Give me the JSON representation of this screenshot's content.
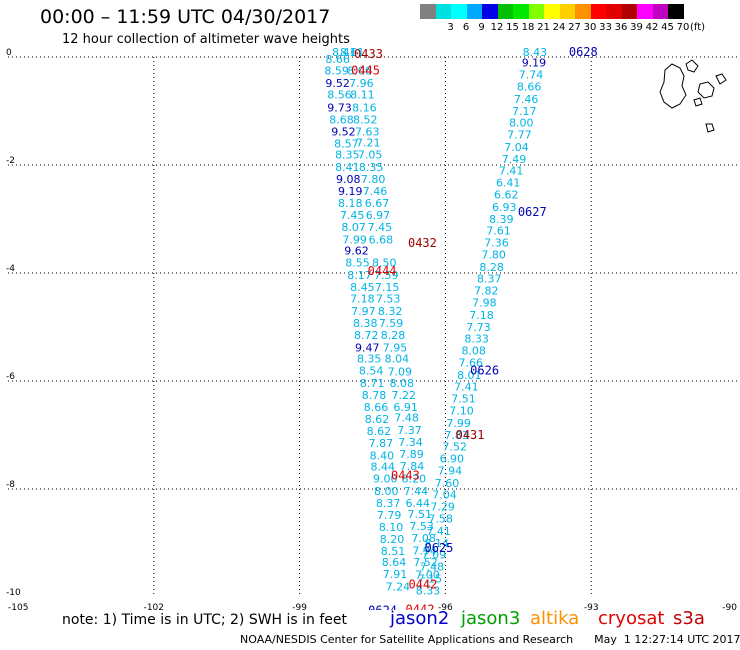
{
  "header": {
    "title": "00:00 – 11:59 UTC 04/30/2017",
    "subtitle": "12 hour collection of altimeter wave heights"
  },
  "color_scale": {
    "unit": "(ft)",
    "bins": [
      {
        "label": "",
        "color": "#808080"
      },
      {
        "label": "3",
        "color": "#00e0e0"
      },
      {
        "label": "6",
        "color": "#00ffff"
      },
      {
        "label": "9",
        "color": "#00a8ff"
      },
      {
        "label": "12",
        "color": "#0000e6"
      },
      {
        "label": "15",
        "color": "#00c000"
      },
      {
        "label": "18",
        "color": "#00e800"
      },
      {
        "label": "21",
        "color": "#80ff00"
      },
      {
        "label": "24",
        "color": "#ffff00"
      },
      {
        "label": "27",
        "color": "#ffd000"
      },
      {
        "label": "30",
        "color": "#ff9000"
      },
      {
        "label": "33",
        "color": "#ff0000"
      },
      {
        "label": "36",
        "color": "#e00000"
      },
      {
        "label": "39",
        "color": "#b00000"
      },
      {
        "label": "42",
        "color": "#ff00ff"
      },
      {
        "label": "45",
        "color": "#c000c0"
      },
      {
        "label": "70",
        "color": "#000000"
      }
    ]
  },
  "map": {
    "lon_range": [
      -105,
      -90
    ],
    "lat_range": [
      -10,
      0
    ],
    "x_ticks": [
      "-105",
      "-102",
      "-99",
      "-96",
      "-93",
      "-90"
    ],
    "y_ticks": [
      "0",
      "-2",
      "-4",
      "-6",
      "-8",
      "-10"
    ],
    "colors": {
      "light": "#00b4e6",
      "dark": "#0000b4",
      "red": "#e00000",
      "maroon": "#a00000"
    },
    "time_labels": [
      {
        "text": "0433",
        "lon": -97.88,
        "lat": -0.02,
        "color": "maroon"
      },
      {
        "text": "0445",
        "lon": -97.94,
        "lat": -0.32,
        "color": "red"
      },
      {
        "text": "0628",
        "lon": -93.46,
        "lat": 0.02,
        "color": "dark"
      },
      {
        "text": "0627",
        "lon": -94.51,
        "lat": -2.94,
        "color": "dark"
      },
      {
        "text": "0432",
        "lon": -96.77,
        "lat": -3.52,
        "color": "maroon"
      },
      {
        "text": "0444",
        "lon": -97.6,
        "lat": -4.04,
        "color": "red"
      },
      {
        "text": "0626",
        "lon": -95.49,
        "lat": -5.88,
        "color": "dark"
      },
      {
        "text": "0431",
        "lon": -95.79,
        "lat": -7.07,
        "color": "maroon"
      },
      {
        "text": "0443",
        "lon": -97.12,
        "lat": -7.82,
        "color": "red"
      },
      {
        "text": "0625",
        "lon": -96.43,
        "lat": -9.17,
        "color": "dark"
      },
      {
        "text": "0442",
        "lon": -96.76,
        "lat": -9.84,
        "color": "red"
      },
      {
        "text": "0442",
        "lon": -96.82,
        "lat": -10.31,
        "color": "red"
      },
      {
        "text": "0624",
        "lon": -97.59,
        "lat": -10.32,
        "color": "dark"
      }
    ],
    "readings": [
      {
        "t": "8.41",
        "lon": -98.33,
        "lat": 0.02,
        "c": "light"
      },
      {
        "t": "8.66",
        "lon": -98.47,
        "lat": -0.11,
        "c": "light"
      },
      {
        "t": "8.59",
        "lon": -98.49,
        "lat": -0.32,
        "c": "light"
      },
      {
        "t": "9.52",
        "lon": -98.47,
        "lat": -0.56,
        "c": "dark"
      },
      {
        "t": "8.56",
        "lon": -98.43,
        "lat": -0.77,
        "c": "light"
      },
      {
        "t": "9.73",
        "lon": -98.43,
        "lat": -1.01,
        "c": "dark"
      },
      {
        "t": "8.68",
        "lon": -98.39,
        "lat": -1.23,
        "c": "light"
      },
      {
        "t": "9.52",
        "lon": -98.35,
        "lat": -1.45,
        "c": "dark"
      },
      {
        "t": "8.57",
        "lon": -98.29,
        "lat": -1.68,
        "c": "light"
      },
      {
        "t": "8.35",
        "lon": -98.27,
        "lat": -1.88,
        "c": "light"
      },
      {
        "t": "8.41",
        "lon": -98.27,
        "lat": -2.11,
        "c": "light"
      },
      {
        "t": "9.08",
        "lon": -98.25,
        "lat": -2.33,
        "c": "dark"
      },
      {
        "t": "9.19",
        "lon": -98.21,
        "lat": -2.56,
        "c": "dark"
      },
      {
        "t": "8.18",
        "lon": -98.21,
        "lat": -2.78,
        "c": "light"
      },
      {
        "t": "7.45",
        "lon": -98.17,
        "lat": -3.0,
        "c": "light"
      },
      {
        "t": "8.07",
        "lon": -98.14,
        "lat": -3.22,
        "c": "light"
      },
      {
        "t": "7.99",
        "lon": -98.12,
        "lat": -3.45,
        "c": "light"
      },
      {
        "t": "9.62",
        "lon": -98.08,
        "lat": -3.66,
        "c": "dark"
      },
      {
        "t": "8.55",
        "lon": -98.06,
        "lat": -3.88,
        "c": "light"
      },
      {
        "t": "8.17",
        "lon": -98.02,
        "lat": -4.11,
        "c": "light"
      },
      {
        "t": "8.45",
        "lon": -97.96,
        "lat": -4.33,
        "c": "light"
      },
      {
        "t": "7.18",
        "lon": -97.96,
        "lat": -4.55,
        "c": "light"
      },
      {
        "t": "7.97",
        "lon": -97.94,
        "lat": -4.78,
        "c": "light"
      },
      {
        "t": "8.38",
        "lon": -97.9,
        "lat": -5.0,
        "c": "light"
      },
      {
        "t": "8.72",
        "lon": -97.88,
        "lat": -5.22,
        "c": "light"
      },
      {
        "t": "9.47",
        "lon": -97.86,
        "lat": -5.45,
        "c": "dark"
      },
      {
        "t": "8.35",
        "lon": -97.82,
        "lat": -5.66,
        "c": "light"
      },
      {
        "t": "8.54",
        "lon": -97.78,
        "lat": -5.88,
        "c": "light"
      },
      {
        "t": "8.71",
        "lon": -97.76,
        "lat": -6.11,
        "c": "light"
      },
      {
        "t": "8.78",
        "lon": -97.72,
        "lat": -6.33,
        "c": "light"
      },
      {
        "t": "8.66",
        "lon": -97.68,
        "lat": -6.56,
        "c": "light"
      },
      {
        "t": "8.62",
        "lon": -97.66,
        "lat": -6.78,
        "c": "light"
      },
      {
        "t": "8.62",
        "lon": -97.62,
        "lat": -7.0,
        "c": "light"
      },
      {
        "t": "7.87",
        "lon": -97.58,
        "lat": -7.22,
        "c": "light"
      },
      {
        "t": "8.40",
        "lon": -97.56,
        "lat": -7.45,
        "c": "light"
      },
      {
        "t": "8.44",
        "lon": -97.54,
        "lat": -7.66,
        "c": "light"
      },
      {
        "t": "9.00",
        "lon": -97.49,
        "lat": -7.88,
        "c": "light"
      },
      {
        "t": "8.00",
        "lon": -97.47,
        "lat": -8.11,
        "c": "light"
      },
      {
        "t": "8.37",
        "lon": -97.43,
        "lat": -8.33,
        "c": "light"
      },
      {
        "t": "7.79",
        "lon": -97.41,
        "lat": -8.56,
        "c": "light"
      },
      {
        "t": "8.10",
        "lon": -97.37,
        "lat": -8.78,
        "c": "light"
      },
      {
        "t": "8.20",
        "lon": -97.35,
        "lat": -9.0,
        "c": "light"
      },
      {
        "t": "8.51",
        "lon": -97.33,
        "lat": -9.22,
        "c": "light"
      },
      {
        "t": "8.64",
        "lon": -97.31,
        "lat": -9.43,
        "c": "light"
      },
      {
        "t": "7.91",
        "lon": -97.29,
        "lat": -9.65,
        "c": "light"
      },
      {
        "t": "7.24",
        "lon": -97.23,
        "lat": -9.88,
        "c": "light"
      },
      {
        "t": "8.61",
        "lon": -98.17,
        "lat": 0.02,
        "c": "light"
      },
      {
        "t": "8.06",
        "lon": -98.02,
        "lat": -0.32,
        "c": "light"
      },
      {
        "t": "7.96",
        "lon": -97.98,
        "lat": -0.56,
        "c": "light"
      },
      {
        "t": "8.11",
        "lon": -97.96,
        "lat": -0.77,
        "c": "light"
      },
      {
        "t": "8.16",
        "lon": -97.92,
        "lat": -1.01,
        "c": "light"
      },
      {
        "t": "8.52",
        "lon": -97.9,
        "lat": -1.23,
        "c": "light"
      },
      {
        "t": "7.63",
        "lon": -97.86,
        "lat": -1.45,
        "c": "light"
      },
      {
        "t": "7.21",
        "lon": -97.84,
        "lat": -1.66,
        "c": "light"
      },
      {
        "t": "7.05",
        "lon": -97.8,
        "lat": -1.88,
        "c": "light"
      },
      {
        "t": "8.35",
        "lon": -97.78,
        "lat": -2.11,
        "c": "light"
      },
      {
        "t": "7.80",
        "lon": -97.74,
        "lat": -2.33,
        "c": "light"
      },
      {
        "t": "7.46",
        "lon": -97.7,
        "lat": -2.56,
        "c": "light"
      },
      {
        "t": "6.67",
        "lon": -97.66,
        "lat": -2.78,
        "c": "light"
      },
      {
        "t": "6.97",
        "lon": -97.64,
        "lat": -3.0,
        "c": "light"
      },
      {
        "t": "7.45",
        "lon": -97.6,
        "lat": -3.22,
        "c": "light"
      },
      {
        "t": "6.68",
        "lon": -97.58,
        "lat": -3.45,
        "c": "light"
      },
      {
        "t": "8.50",
        "lon": -97.51,
        "lat": -3.88,
        "c": "light"
      },
      {
        "t": "7.59",
        "lon": -97.47,
        "lat": -4.11,
        "c": "light"
      },
      {
        "t": "7.15",
        "lon": -97.45,
        "lat": -4.33,
        "c": "light"
      },
      {
        "t": "7.53",
        "lon": -97.43,
        "lat": -4.55,
        "c": "light"
      },
      {
        "t": "8.32",
        "lon": -97.39,
        "lat": -4.78,
        "c": "light"
      },
      {
        "t": "7.59",
        "lon": -97.37,
        "lat": -5.0,
        "c": "light"
      },
      {
        "t": "8.28",
        "lon": -97.33,
        "lat": -5.22,
        "c": "light"
      },
      {
        "t": "7.95",
        "lon": -97.29,
        "lat": -5.45,
        "c": "light"
      },
      {
        "t": "8.04",
        "lon": -97.25,
        "lat": -5.66,
        "c": "light"
      },
      {
        "t": "7.09",
        "lon": -97.19,
        "lat": -5.9,
        "c": "light"
      },
      {
        "t": "8.08",
        "lon": -97.15,
        "lat": -6.11,
        "c": "light"
      },
      {
        "t": "7.22",
        "lon": -97.11,
        "lat": -6.33,
        "c": "light"
      },
      {
        "t": "6.91",
        "lon": -97.07,
        "lat": -6.56,
        "c": "light"
      },
      {
        "t": "7.48",
        "lon": -97.05,
        "lat": -6.75,
        "c": "light"
      },
      {
        "t": "7.37",
        "lon": -96.99,
        "lat": -6.98,
        "c": "light"
      },
      {
        "t": "7.34",
        "lon": -96.97,
        "lat": -7.2,
        "c": "light"
      },
      {
        "t": "7.89",
        "lon": -96.95,
        "lat": -7.43,
        "c": "light"
      },
      {
        "t": "7.84",
        "lon": -96.94,
        "lat": -7.65,
        "c": "light"
      },
      {
        "t": "8.20",
        "lon": -96.9,
        "lat": -7.88,
        "c": "light"
      },
      {
        "t": "7.44",
        "lon": -96.86,
        "lat": -8.11,
        "c": "light"
      },
      {
        "t": "6.44",
        "lon": -96.82,
        "lat": -8.33,
        "c": "light"
      },
      {
        "t": "7.51",
        "lon": -96.78,
        "lat": -8.54,
        "c": "light"
      },
      {
        "t": "7.53",
        "lon": -96.74,
        "lat": -8.76,
        "c": "light"
      },
      {
        "t": "7.08",
        "lon": -96.7,
        "lat": -8.98,
        "c": "light"
      },
      {
        "t": "7.94",
        "lon": -96.68,
        "lat": -9.21,
        "c": "light"
      },
      {
        "t": "7.52",
        "lon": -96.66,
        "lat": -9.43,
        "c": "light"
      },
      {
        "t": "7.00",
        "lon": -96.62,
        "lat": -9.66,
        "c": "light"
      },
      {
        "t": "8.43",
        "lon": -94.41,
        "lat": 0.02,
        "c": "light"
      },
      {
        "t": "9.19",
        "lon": -94.43,
        "lat": -0.18,
        "c": "dark"
      },
      {
        "t": "7.74",
        "lon": -94.49,
        "lat": -0.4,
        "c": "light"
      },
      {
        "t": "8.66",
        "lon": -94.53,
        "lat": -0.62,
        "c": "light"
      },
      {
        "t": "7.46",
        "lon": -94.59,
        "lat": -0.85,
        "c": "light"
      },
      {
        "t": "7.17",
        "lon": -94.63,
        "lat": -1.07,
        "c": "light"
      },
      {
        "t": "8.00",
        "lon": -94.69,
        "lat": -1.29,
        "c": "light"
      },
      {
        "t": "7.77",
        "lon": -94.73,
        "lat": -1.51,
        "c": "light"
      },
      {
        "t": "7.04",
        "lon": -94.79,
        "lat": -1.74,
        "c": "light"
      },
      {
        "t": "7.49",
        "lon": -94.84,
        "lat": -1.96,
        "c": "light"
      },
      {
        "t": "7.41",
        "lon": -94.9,
        "lat": -2.18,
        "c": "light"
      },
      {
        "t": "6.41",
        "lon": -94.96,
        "lat": -2.4,
        "c": "light"
      },
      {
        "t": "6.62",
        "lon": -95.0,
        "lat": -2.62,
        "c": "light"
      },
      {
        "t": "6.93",
        "lon": -95.04,
        "lat": -2.85,
        "c": "light"
      },
      {
        "t": "8.39",
        "lon": -95.1,
        "lat": -3.07,
        "c": "light"
      },
      {
        "t": "7.61",
        "lon": -95.16,
        "lat": -3.29,
        "c": "light"
      },
      {
        "t": "7.36",
        "lon": -95.2,
        "lat": -3.51,
        "c": "light"
      },
      {
        "t": "7.80",
        "lon": -95.26,
        "lat": -3.73,
        "c": "light"
      },
      {
        "t": "8.28",
        "lon": -95.3,
        "lat": -3.96,
        "c": "light"
      },
      {
        "t": "8.37",
        "lon": -95.35,
        "lat": -4.18,
        "c": "light"
      },
      {
        "t": "7.82",
        "lon": -95.41,
        "lat": -4.4,
        "c": "light"
      },
      {
        "t": "7.98",
        "lon": -95.45,
        "lat": -4.62,
        "c": "light"
      },
      {
        "t": "7.18",
        "lon": -95.51,
        "lat": -4.85,
        "c": "light"
      },
      {
        "t": "7.73",
        "lon": -95.57,
        "lat": -5.07,
        "c": "light"
      },
      {
        "t": "8.33",
        "lon": -95.61,
        "lat": -5.29,
        "c": "light"
      },
      {
        "t": "8.08",
        "lon": -95.67,
        "lat": -5.51,
        "c": "light"
      },
      {
        "t": "7.66",
        "lon": -95.73,
        "lat": -5.73,
        "c": "light"
      },
      {
        "t": "8.01",
        "lon": -95.76,
        "lat": -5.96,
        "c": "light"
      },
      {
        "t": "7.41",
        "lon": -95.82,
        "lat": -6.18,
        "c": "light"
      },
      {
        "t": "7.51",
        "lon": -95.88,
        "lat": -6.4,
        "c": "light"
      },
      {
        "t": "7.10",
        "lon": -95.92,
        "lat": -6.62,
        "c": "light"
      },
      {
        "t": "7.99",
        "lon": -95.98,
        "lat": -6.85,
        "c": "light"
      },
      {
        "t": "7.83",
        "lon": -96.02,
        "lat": -7.07,
        "c": "light"
      },
      {
        "t": "7.52",
        "lon": -96.06,
        "lat": -7.29,
        "c": "light"
      },
      {
        "t": "6.90",
        "lon": -96.12,
        "lat": -7.51,
        "c": "light"
      },
      {
        "t": "7.94",
        "lon": -96.16,
        "lat": -7.73,
        "c": "light"
      },
      {
        "t": "7.60",
        "lon": -96.22,
        "lat": -7.96,
        "c": "light"
      },
      {
        "t": "7.04",
        "lon": -96.27,
        "lat": -8.18,
        "c": "light"
      },
      {
        "t": "7.29",
        "lon": -96.31,
        "lat": -8.4,
        "c": "light"
      },
      {
        "t": "7.58",
        "lon": -96.35,
        "lat": -8.62,
        "c": "light"
      },
      {
        "t": "7.41",
        "lon": -96.39,
        "lat": -8.85,
        "c": "light"
      },
      {
        "t": "8.14",
        "lon": -96.43,
        "lat": -9.07,
        "c": "light"
      },
      {
        "t": "7.09",
        "lon": -96.49,
        "lat": -9.29,
        "c": "light"
      },
      {
        "t": "7.48",
        "lon": -96.53,
        "lat": -9.51,
        "c": "light"
      },
      {
        "t": "7.15",
        "lon": -96.57,
        "lat": -9.73,
        "c": "light"
      },
      {
        "t": "8.33",
        "lon": -96.61,
        "lat": -9.95,
        "c": "light"
      }
    ]
  },
  "note": "note:  1) Time is in UTC;  2) SWH is in feet",
  "legend": [
    {
      "label": "jason2",
      "color": "#0000c8",
      "left": 390
    },
    {
      "label": "jason3",
      "color": "#00a000",
      "left": 461
    },
    {
      "label": "altika",
      "color": "#ff9000",
      "left": 530
    },
    {
      "label": "cryosat",
      "color": "#e00000",
      "left": 598
    },
    {
      "label": "s3a",
      "color": "#c00000",
      "left": 673
    }
  ],
  "footer": "NOAA/NESDIS Center for Satellite Applications and Research      May  1 12:27:14 UTC 2017"
}
